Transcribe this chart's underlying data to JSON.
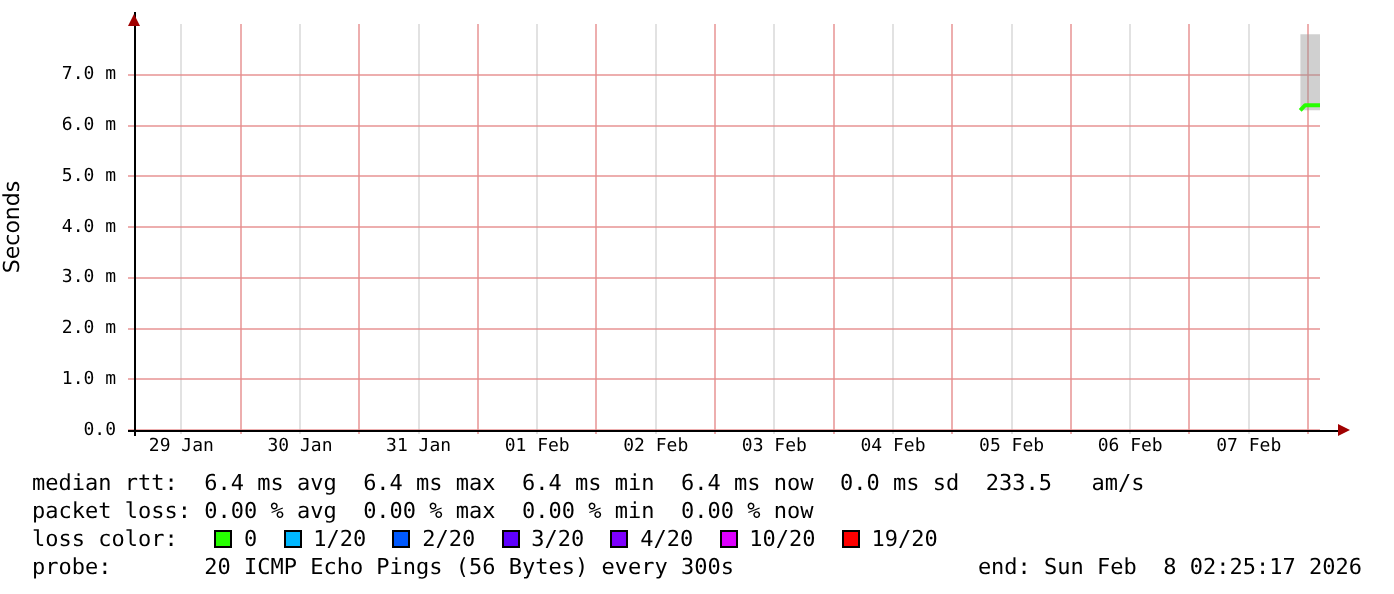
{
  "chart_data": {
    "type": "line",
    "ylabel": "Seconds",
    "xlim": [
      "2026-01-29T02:25",
      "2026-02-08T02:25"
    ],
    "xticks": [
      {
        "value": "2026-01-29T12:00",
        "label": "29 Jan"
      },
      {
        "value": "2026-01-30T00:00",
        "label": null
      },
      {
        "value": "2026-01-30T12:00",
        "label": "30 Jan"
      },
      {
        "value": "2026-01-31T00:00",
        "label": null
      },
      {
        "value": "2026-01-31T12:00",
        "label": "31 Jan"
      },
      {
        "value": "2026-02-01T00:00",
        "label": null
      },
      {
        "value": "2026-02-01T12:00",
        "label": "01 Feb"
      },
      {
        "value": "2026-02-02T00:00",
        "label": null
      },
      {
        "value": "2026-02-02T12:00",
        "label": "02 Feb"
      },
      {
        "value": "2026-02-03T00:00",
        "label": null
      },
      {
        "value": "2026-02-03T12:00",
        "label": "03 Feb"
      },
      {
        "value": "2026-02-04T00:00",
        "label": null
      },
      {
        "value": "2026-02-04T12:00",
        "label": "04 Feb"
      },
      {
        "value": "2026-02-05T00:00",
        "label": null
      },
      {
        "value": "2026-02-05T12:00",
        "label": "05 Feb"
      },
      {
        "value": "2026-02-06T00:00",
        "label": null
      },
      {
        "value": "2026-02-06T12:00",
        "label": "06 Feb"
      },
      {
        "value": "2026-02-07T00:00",
        "label": null
      },
      {
        "value": "2026-02-07T12:00",
        "label": "07 Feb"
      },
      {
        "value": "2026-02-08T00:00",
        "label": null
      }
    ],
    "ylim": [
      0,
      8
    ],
    "yticks": [
      {
        "value": 0,
        "label": "0.0"
      },
      {
        "value": 1,
        "label": "1.0 m"
      },
      {
        "value": 2,
        "label": "2.0 m"
      },
      {
        "value": 3,
        "label": "3.0 m"
      },
      {
        "value": 4,
        "label": "4.0 m"
      },
      {
        "value": 5,
        "label": "5.0 m"
      },
      {
        "value": 6,
        "label": "6.0 m"
      },
      {
        "value": 7,
        "label": "7.0 m"
      }
    ],
    "grid": true,
    "legend": false,
    "marker": "none",
    "line_style": "solid",
    "series": [
      {
        "color": "#26ff00",
        "x": [
          "2026-02-07T22:25",
          "2026-02-07T23:25",
          "2026-02-08T00:25",
          "2026-02-08T01:25",
          "2026-02-08T02:25"
        ],
        "values": [
          6.3,
          6.4,
          6.4,
          6.4,
          6.4
        ],
        "lower": [
          6.3,
          6.3,
          6.3,
          6.3,
          6.3
        ],
        "upper": [
          7.8,
          7.8,
          7.8,
          7.8,
          7.8
        ]
      }
    ],
    "annotations": [
      "median rtt:  6.4 ms avg  6.4 ms max  6.4 ms min  6.4 ms now  0.0 ms sd  233.5   am/s",
      "packet loss: 0.00 % avg  0.00 % max  0.00 % min  0.00 % now",
      "loss color:",
      "0",
      "1/20",
      "2/20",
      "3/20",
      "4/20",
      "10/20",
      "19/20",
      "probe:       20 ICMP Echo Pings (56 Bytes) every 300s",
      "end: Sun Feb  8 02:25:17 2026"
    ]
  }
}
